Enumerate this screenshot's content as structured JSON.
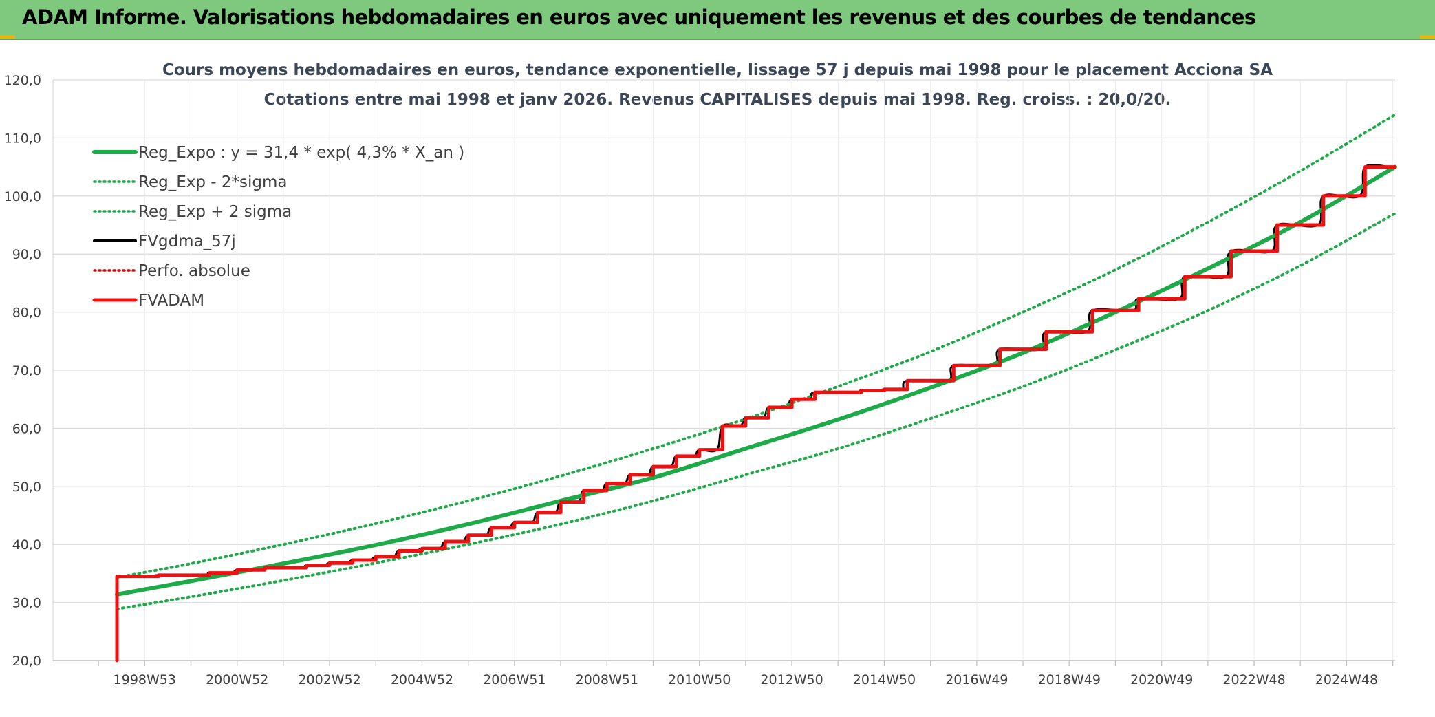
{
  "header": {
    "title": "ADAM Informe. Valorisations hebdomadaires en euros avec uniquement les revenus et des courbes de tendances"
  },
  "colors": {
    "header_bg": "#7fc97f",
    "trend": "#1faa4a",
    "band": "#1faa4a",
    "fvgdma": "#000000",
    "perf": "#e00000",
    "fvadam": "#ee1111",
    "grid": "#dcdcdc",
    "accent_corner": "#f0b400"
  },
  "chart_data": {
    "type": "line",
    "title": "Cours moyens hebdomadaires en euros, tendance exponentielle, lissage 57 j depuis mai 1998 pour le placement Acciona SA",
    "subtitle": "Cotations entre mai 1998 et janv 2026. Revenus CAPITALISES depuis mai 1998. Reg. croiss. : 20,0/20.",
    "xlabel": "",
    "ylabel": "",
    "x_start": 1998.4,
    "x_end": 2026.05,
    "ylim": [
      20,
      120
    ],
    "yticks": [
      20,
      30,
      40,
      50,
      60,
      70,
      80,
      90,
      100,
      110,
      120
    ],
    "ytick_labels": [
      "20,0",
      "30,0",
      "40,0",
      "50,0",
      "60,0",
      "70,0",
      "80,0",
      "90,0",
      "100,0",
      "110,0",
      "120,0"
    ],
    "xtick_labels": [
      "1998W53",
      "2000W52",
      "2002W52",
      "2004W52",
      "2006W51",
      "2008W51",
      "2010W50",
      "2012W50",
      "2014W50",
      "2016W49",
      "2018W49",
      "2020W49",
      "2022W48",
      "2024W48"
    ],
    "xtick_positions": [
      1999.0,
      2001.0,
      2003.0,
      2005.0,
      2007.0,
      2009.0,
      2011.0,
      2013.0,
      2015.0,
      2017.0,
      2019.0,
      2021.0,
      2023.0,
      2025.0
    ],
    "grid": true,
    "legend_position": "top-left",
    "series": [
      {
        "name": "Reg_Expo : y = 31,4 * exp( 4,3% *  X_an )",
        "style": "solid-thick",
        "color": "#1faa4a",
        "points": [
          [
            1998.4,
            31.4
          ],
          [
            2000.0,
            33.7
          ],
          [
            2002.0,
            36.7
          ],
          [
            2004.0,
            39.9
          ],
          [
            2006.0,
            43.5
          ],
          [
            2008.0,
            47.5
          ],
          [
            2010.0,
            51.5
          ],
          [
            2012.0,
            56.5
          ],
          [
            2014.0,
            61.5
          ],
          [
            2016.0,
            67.0
          ],
          [
            2018.0,
            73.0
          ],
          [
            2020.0,
            80.0
          ],
          [
            2022.0,
            87.5
          ],
          [
            2024.0,
            95.5
          ],
          [
            2026.05,
            105.0
          ]
        ]
      },
      {
        "name": "Reg_Exp - 2*sigma",
        "style": "dotted",
        "color": "#1faa4a",
        "points": [
          [
            1998.4,
            28.9
          ],
          [
            2000.0,
            31.0
          ],
          [
            2002.0,
            33.8
          ],
          [
            2004.0,
            36.8
          ],
          [
            2006.0,
            40.0
          ],
          [
            2008.0,
            43.5
          ],
          [
            2010.0,
            47.5
          ],
          [
            2012.0,
            52.0
          ],
          [
            2014.0,
            56.5
          ],
          [
            2016.0,
            61.7
          ],
          [
            2018.0,
            67.2
          ],
          [
            2020.0,
            73.5
          ],
          [
            2022.0,
            80.3
          ],
          [
            2024.0,
            88.0
          ],
          [
            2026.05,
            97.0
          ]
        ]
      },
      {
        "name": "Reg_Exp + 2 sigma",
        "style": "dotted",
        "color": "#1faa4a",
        "points": [
          [
            1998.4,
            34.3
          ],
          [
            2000.0,
            36.7
          ],
          [
            2002.0,
            40.0
          ],
          [
            2004.0,
            43.6
          ],
          [
            2006.0,
            47.5
          ],
          [
            2008.0,
            51.8
          ],
          [
            2010.0,
            56.5
          ],
          [
            2012.0,
            61.6
          ],
          [
            2014.0,
            67.2
          ],
          [
            2016.0,
            73.2
          ],
          [
            2018.0,
            80.0
          ],
          [
            2020.0,
            87.3
          ],
          [
            2022.0,
            95.5
          ],
          [
            2024.0,
            104.3
          ],
          [
            2026.05,
            114.0
          ]
        ]
      },
      {
        "name": "FVgdma_57j",
        "style": "smoothed-steps",
        "color": "#000000",
        "points": []
      },
      {
        "name": "Perfo. absolue",
        "style": "dotted",
        "color": "#e00000",
        "points": []
      },
      {
        "name": "FVADAM",
        "style": "steps",
        "color": "#ee1111",
        "points": [
          [
            1998.4,
            20.0
          ],
          [
            1998.4,
            34.5
          ],
          [
            1999.3,
            34.7
          ],
          [
            2000.4,
            35.1
          ],
          [
            2001.0,
            35.6
          ],
          [
            2001.6,
            36.0
          ],
          [
            2002.5,
            36.4
          ],
          [
            2003.0,
            36.8
          ],
          [
            2003.5,
            37.3
          ],
          [
            2004.0,
            37.9
          ],
          [
            2004.5,
            38.9
          ],
          [
            2005.0,
            39.3
          ],
          [
            2005.5,
            40.5
          ],
          [
            2006.0,
            41.6
          ],
          [
            2006.5,
            42.9
          ],
          [
            2007.0,
            43.8
          ],
          [
            2007.5,
            45.5
          ],
          [
            2008.0,
            47.3
          ],
          [
            2008.5,
            49.3
          ],
          [
            2009.0,
            50.5
          ],
          [
            2009.5,
            52.0
          ],
          [
            2010.0,
            53.4
          ],
          [
            2010.5,
            55.2
          ],
          [
            2011.0,
            56.3
          ],
          [
            2011.5,
            60.4
          ],
          [
            2012.0,
            61.8
          ],
          [
            2012.5,
            63.6
          ],
          [
            2013.0,
            65.0
          ],
          [
            2013.5,
            66.2
          ],
          [
            2014.5,
            66.5
          ],
          [
            2015.0,
            66.7
          ],
          [
            2015.5,
            68.2
          ],
          [
            2016.5,
            70.8
          ],
          [
            2017.5,
            73.6
          ],
          [
            2018.5,
            76.6
          ],
          [
            2019.5,
            80.3
          ],
          [
            2020.5,
            82.3
          ],
          [
            2021.5,
            86.1
          ],
          [
            2022.5,
            90.5
          ],
          [
            2023.5,
            95.0
          ],
          [
            2024.5,
            100.0
          ],
          [
            2025.4,
            105.0
          ],
          [
            2026.05,
            105.0
          ]
        ]
      }
    ]
  }
}
